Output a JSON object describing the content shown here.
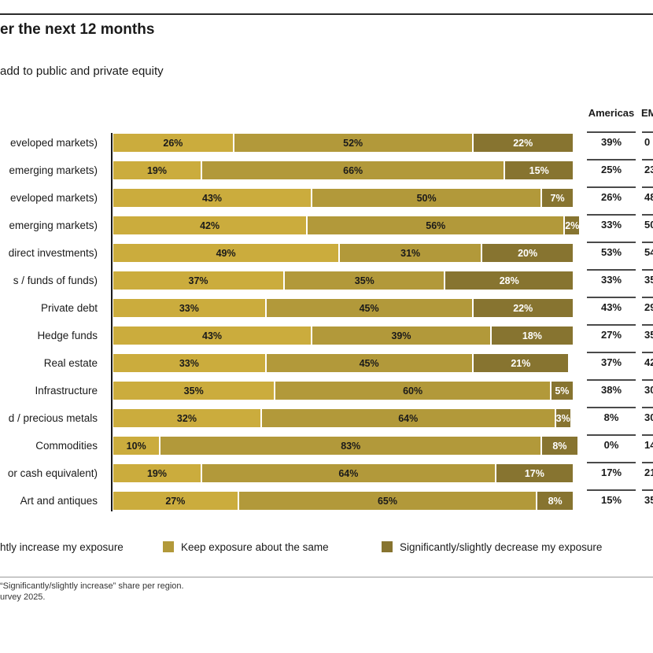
{
  "title": "er the next 12 months",
  "subtitle": "add to public and private equity",
  "columns": {
    "americas_header": "Americas",
    "emea_header": "EM"
  },
  "chart_data": {
    "type": "bar",
    "orientation": "horizontal",
    "stacked": true,
    "xlim": [
      0,
      100
    ],
    "categories": [
      "eveloped markets)",
      "emerging markets)",
      "eveloped markets)",
      "emerging markets)",
      "direct investments)",
      "s / funds of funds)",
      "Private debt",
      "Hedge funds",
      "Real estate",
      "Infrastructure",
      "d / precious metals",
      "Commodities",
      "or cash equivalent)",
      "Art and antiques"
    ],
    "series": [
      {
        "name": "htly increase my exposure",
        "color": "#cbac3d",
        "label_color": "#1a1a1a",
        "values": [
          26,
          19,
          43,
          42,
          49,
          37,
          33,
          43,
          33,
          35,
          32,
          10,
          19,
          27
        ]
      },
      {
        "name": "Keep exposure about the same",
        "color": "#b2993a",
        "label_color": "#1a1a1a",
        "values": [
          52,
          66,
          50,
          56,
          31,
          35,
          45,
          39,
          45,
          60,
          64,
          83,
          64,
          65
        ]
      },
      {
        "name": "Significantly/slightly decrease my exposure",
        "color": "#877430",
        "label_color": "#ffffff",
        "values": [
          22,
          15,
          7,
          2,
          20,
          28,
          22,
          18,
          21,
          5,
          3,
          8,
          17,
          8
        ]
      }
    ],
    "americas_column": [
      "39%",
      "25%",
      "26%",
      "33%",
      "53%",
      "33%",
      "43%",
      "27%",
      "37%",
      "38%",
      "8%",
      "0%",
      "17%",
      "15%"
    ],
    "emea_column_partial": [
      "0",
      "23",
      "48",
      "50",
      "54",
      "35",
      "29",
      "35",
      "42",
      "30",
      "30",
      "14",
      "21",
      "35"
    ],
    "legend_position": "bottom",
    "grid": false
  },
  "legend": [
    {
      "label": "htly increase my exposure",
      "swatch_visible": false,
      "color": "#cbac3d",
      "x": 0
    },
    {
      "label": "Keep exposure about the same",
      "swatch_visible": true,
      "color": "#b2993a",
      "x": 207
    },
    {
      "label": "Significantly/slightly decrease my exposure",
      "swatch_visible": true,
      "color": "#877430",
      "x": 485
    }
  ],
  "footnotes": [
    "“Significantly/slightly increase” share per region.",
    "urvey 2025."
  ]
}
